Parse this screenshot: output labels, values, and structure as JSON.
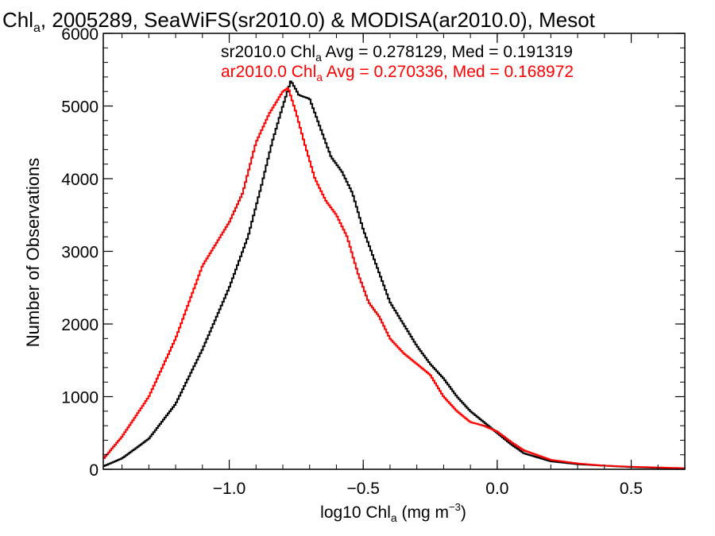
{
  "chart_data": {
    "type": "line",
    "title": {
      "pre": "Chl",
      "sub": "a",
      "post": ", 2005289, SeaWiFS(sr2010.0) & MODISA(ar2010.0), Mesot"
    },
    "xlabel": {
      "pre": "log10 Chl",
      "sub": "a",
      "mid": " (mg m",
      "sup": "−3",
      "post": ")"
    },
    "ylabel": "Number of Observations",
    "xlim": [
      -1.47,
      0.7
    ],
    "ylim": [
      0,
      6000
    ],
    "x_ticks": [
      {
        "value": -1.0,
        "label": "−1.0"
      },
      {
        "value": -0.5,
        "label": "−0.5"
      },
      {
        "value": 0.0,
        "label": "0.0"
      },
      {
        "value": 0.5,
        "label": "0.5"
      }
    ],
    "y_ticks": [
      {
        "value": 0,
        "label": "0"
      },
      {
        "value": 1000,
        "label": "1000"
      },
      {
        "value": 2000,
        "label": "2000"
      },
      {
        "value": 3000,
        "label": "3000"
      },
      {
        "value": 4000,
        "label": "4000"
      },
      {
        "value": 5000,
        "label": "5000"
      },
      {
        "value": 6000,
        "label": "6000"
      }
    ],
    "grid": false,
    "legend_position": "top-right",
    "series": [
      {
        "name": "sr2010.0",
        "color": "#000000",
        "legend": {
          "pre": "sr2010.0 Chl",
          "sub": "a",
          "post": " Avg = 0.278129, Med = 0.191319"
        },
        "points": [
          [
            -1.47,
            40
          ],
          [
            -1.4,
            150
          ],
          [
            -1.3,
            420
          ],
          [
            -1.2,
            900
          ],
          [
            -1.1,
            1650
          ],
          [
            -1.0,
            2500
          ],
          [
            -0.93,
            3200
          ],
          [
            -0.88,
            3900
          ],
          [
            -0.84,
            4500
          ],
          [
            -0.8,
            5000
          ],
          [
            -0.77,
            5350
          ],
          [
            -0.74,
            5150
          ],
          [
            -0.7,
            5100
          ],
          [
            -0.67,
            4800
          ],
          [
            -0.62,
            4300
          ],
          [
            -0.58,
            4100
          ],
          [
            -0.54,
            3800
          ],
          [
            -0.5,
            3300
          ],
          [
            -0.45,
            2800
          ],
          [
            -0.4,
            2300
          ],
          [
            -0.35,
            2000
          ],
          [
            -0.3,
            1700
          ],
          [
            -0.25,
            1450
          ],
          [
            -0.2,
            1250
          ],
          [
            -0.15,
            1000
          ],
          [
            -0.1,
            800
          ],
          [
            -0.05,
            650
          ],
          [
            0.0,
            500
          ],
          [
            0.05,
            350
          ],
          [
            0.1,
            220
          ],
          [
            0.2,
            110
          ],
          [
            0.3,
            70
          ],
          [
            0.4,
            50
          ],
          [
            0.5,
            30
          ],
          [
            0.6,
            20
          ],
          [
            0.7,
            10
          ]
        ]
      },
      {
        "name": "ar2010.0",
        "color": "#ff0000",
        "legend": {
          "pre": "ar2010.0 Chl",
          "sub": "a",
          "post": " Avg = 0.270336, Med = 0.168972"
        },
        "points": [
          [
            -1.47,
            140
          ],
          [
            -1.4,
            450
          ],
          [
            -1.3,
            1000
          ],
          [
            -1.2,
            1800
          ],
          [
            -1.1,
            2800
          ],
          [
            -1.05,
            3100
          ],
          [
            -1.0,
            3400
          ],
          [
            -0.95,
            3800
          ],
          [
            -0.9,
            4500
          ],
          [
            -0.85,
            4900
          ],
          [
            -0.8,
            5200
          ],
          [
            -0.78,
            5250
          ],
          [
            -0.75,
            4900
          ],
          [
            -0.72,
            4500
          ],
          [
            -0.68,
            4000
          ],
          [
            -0.64,
            3700
          ],
          [
            -0.6,
            3500
          ],
          [
            -0.56,
            3200
          ],
          [
            -0.52,
            2700
          ],
          [
            -0.48,
            2300
          ],
          [
            -0.44,
            2100
          ],
          [
            -0.4,
            1800
          ],
          [
            -0.35,
            1600
          ],
          [
            -0.3,
            1450
          ],
          [
            -0.25,
            1300
          ],
          [
            -0.2,
            1000
          ],
          [
            -0.15,
            800
          ],
          [
            -0.1,
            650
          ],
          [
            -0.05,
            600
          ],
          [
            0.0,
            520
          ],
          [
            0.05,
            380
          ],
          [
            0.1,
            260
          ],
          [
            0.2,
            130
          ],
          [
            0.3,
            80
          ],
          [
            0.4,
            50
          ],
          [
            0.5,
            35
          ],
          [
            0.6,
            25
          ],
          [
            0.7,
            15
          ]
        ]
      }
    ]
  }
}
